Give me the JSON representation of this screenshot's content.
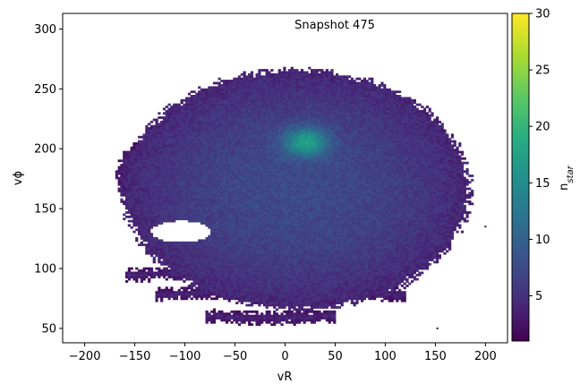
{
  "chart_data": {
    "type": "heatmap",
    "subtype": "2d-histogram",
    "annotation": "Snapshot 475",
    "xlabel": "vR",
    "ylabel": "vϕ",
    "xlim": [
      -222,
      222
    ],
    "ylim": [
      38,
      313
    ],
    "x_ticks": [
      {
        "value": -200,
        "label": "−200"
      },
      {
        "value": -150,
        "label": "−150"
      },
      {
        "value": -100,
        "label": "−100"
      },
      {
        "value": -50,
        "label": "−50"
      },
      {
        "value": 0,
        "label": "0"
      },
      {
        "value": 50,
        "label": "50"
      },
      {
        "value": 100,
        "label": "100"
      },
      {
        "value": 150,
        "label": "150"
      },
      {
        "value": 200,
        "label": "200"
      }
    ],
    "y_ticks": [
      {
        "value": 50,
        "label": "50"
      },
      {
        "value": 100,
        "label": "100"
      },
      {
        "value": 150,
        "label": "150"
      },
      {
        "value": 200,
        "label": "200"
      },
      {
        "value": 250,
        "label": "250"
      },
      {
        "value": 300,
        "label": "300"
      }
    ],
    "colorbar": {
      "label": "n",
      "label_sub": "star",
      "min": 1,
      "max": 30,
      "colormap": "viridis",
      "ticks": [
        {
          "value": 5,
          "label": "5"
        },
        {
          "value": 10,
          "label": "10"
        },
        {
          "value": 15,
          "label": "15"
        },
        {
          "value": 20,
          "label": "20"
        },
        {
          "value": 25,
          "label": "25"
        },
        {
          "value": 30,
          "label": "30"
        }
      ]
    },
    "grid": false,
    "main_blob": {
      "center_vR": 10,
      "center_vphi": 165,
      "extent_vR": [
        -165,
        180
      ],
      "extent_vphi": [
        50,
        250
      ]
    },
    "peak_density": {
      "vR": 20,
      "vphi": 205,
      "n_star": 17
    },
    "streams": [
      {
        "vR_range": [
          -150,
          -60
        ],
        "vphi": 140
      },
      {
        "vR_range": [
          -160,
          10
        ],
        "vphi": 95
      },
      {
        "vR_range": [
          -130,
          120
        ],
        "vphi": 80
      },
      {
        "vR_range": [
          -80,
          50
        ],
        "vphi": 58
      }
    ],
    "outliers": [
      {
        "vR": 200,
        "vphi": 135
      },
      {
        "vR": 152,
        "vphi": 50
      }
    ]
  }
}
